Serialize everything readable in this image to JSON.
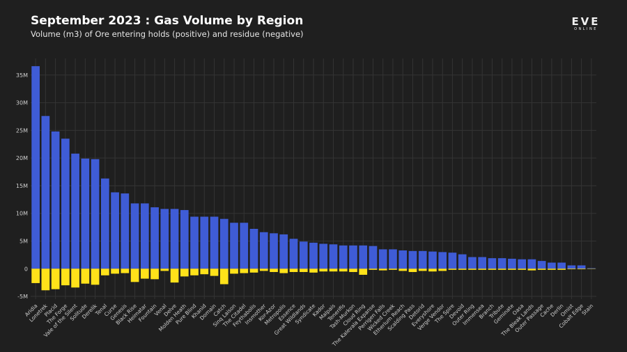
{
  "header": {
    "title": "September 2023 : Gas Volume by Region",
    "subtitle": "Volume (m3) of Ore entering holds (positive) and residue (negative)",
    "logo_text": "EVE",
    "logo_subtext": "ONLINE"
  },
  "colors": {
    "background": "#1f1f1f",
    "positive": "#3f5cd6",
    "negative": "#ffe21a",
    "grid": "#343434"
  },
  "chart_data": {
    "type": "bar",
    "title": "September 2023 : Gas Volume by Region",
    "subtitle": "Volume (m3) of Ore entering holds (positive) and residue (negative)",
    "xlabel": "",
    "ylabel": "",
    "ylim": [
      -5500000,
      38000000
    ],
    "yticks": [
      -5000000,
      0,
      5000000,
      10000000,
      15000000,
      20000000,
      25000000,
      30000000,
      35000000
    ],
    "ytick_labels": [
      "-5M",
      "0",
      "5M",
      "10M",
      "15M",
      "20M",
      "25M",
      "30M",
      "35M"
    ],
    "grid": true,
    "stacked": true,
    "categories": [
      "Aridia",
      "Lonetrek",
      "Placid",
      "The Forge",
      "Vale of the Silent",
      "Solitude",
      "Derelik",
      "Tenal",
      "Curse",
      "Genesis",
      "Black Rise",
      "Heimatar",
      "Fountain",
      "Venal",
      "Delve",
      "Molden Heath",
      "Pure Blind",
      "Khanid",
      "Domain",
      "Catch",
      "Sinq Laison",
      "The Citadel",
      "Feythabolis",
      "Insmother",
      "Kor-Azor",
      "Metropolis",
      "Essence",
      "Great Wildlands",
      "Syndicate",
      "Kador",
      "Malpais",
      "Tenerifis",
      "Tash-Murkon",
      "Cloud Ring",
      "The Kalevala Expanse",
      "Perrigen Falls",
      "Wicked Creek",
      "Etherium Reach",
      "Scalding Pass",
      "Detorid",
      "Everyshore",
      "Verge Vendor",
      "The Spire",
      "Devoid",
      "Outer Ring",
      "Immensea",
      "Branch",
      "Tribute",
      "Geminate",
      "Oasa",
      "The Bleak Lands",
      "Outer Passage",
      "Cache",
      "Derlin",
      "Omist",
      "Cobalt Edge",
      "Stain"
    ],
    "series": [
      {
        "name": "Entering holds (positive)",
        "color": "#3f5cd6",
        "values": [
          36600000,
          27600000,
          24800000,
          23500000,
          20800000,
          19900000,
          19800000,
          16300000,
          13800000,
          13600000,
          11800000,
          11800000,
          11100000,
          10800000,
          10800000,
          10600000,
          9400000,
          9400000,
          9400000,
          9000000,
          8300000,
          8300000,
          7200000,
          6600000,
          6400000,
          6200000,
          5400000,
          4900000,
          4700000,
          4500000,
          4400000,
          4200000,
          4200000,
          4200000,
          4100000,
          3500000,
          3500000,
          3300000,
          3200000,
          3200000,
          3100000,
          3000000,
          2900000,
          2600000,
          2100000,
          2100000,
          1900000,
          1900000,
          1800000,
          1700000,
          1700000,
          1400000,
          1100000,
          1100000,
          600000,
          600000,
          100000
        ]
      },
      {
        "name": "Residue (negative)",
        "color": "#ffe21a",
        "values": [
          -2600000,
          -3900000,
          -3700000,
          -3000000,
          -3400000,
          -2700000,
          -2900000,
          -1200000,
          -900000,
          -800000,
          -2400000,
          -1800000,
          -1900000,
          -400000,
          -2500000,
          -1400000,
          -1200000,
          -1000000,
          -1300000,
          -2800000,
          -900000,
          -800000,
          -700000,
          -400000,
          -600000,
          -800000,
          -600000,
          -600000,
          -700000,
          -500000,
          -500000,
          -500000,
          -600000,
          -1100000,
          -200000,
          -300000,
          -200000,
          -400000,
          -600000,
          -400000,
          -500000,
          -400000,
          -200000,
          -200000,
          -200000,
          -200000,
          -200000,
          -200000,
          -200000,
          -200000,
          -300000,
          -200000,
          -200000,
          -200000,
          -100000,
          -100000,
          -50000
        ]
      }
    ]
  }
}
